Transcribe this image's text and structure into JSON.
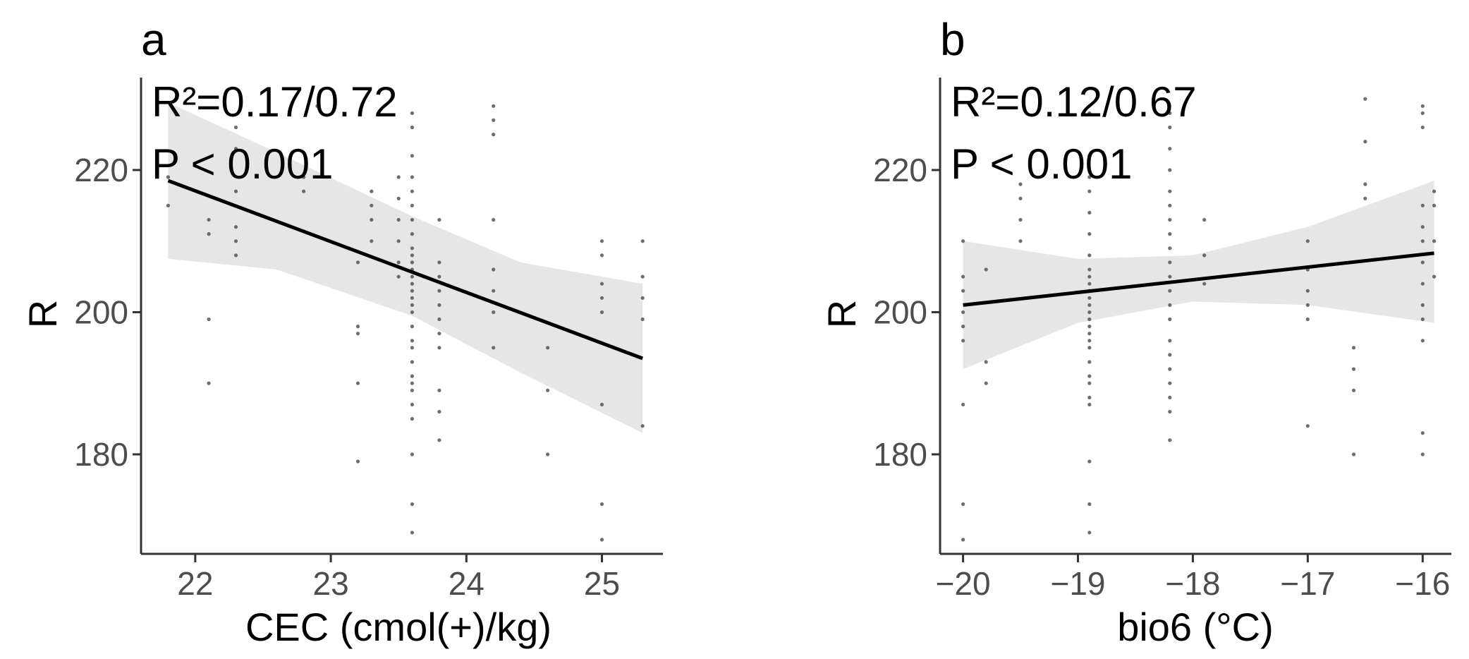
{
  "chart_data": [
    {
      "type": "scatter",
      "panel": "a",
      "xlabel": "CEC (cmol(+)/kg)",
      "ylabel": "R",
      "annotations": [
        "R²=0.17/0.72",
        "P < 0.001"
      ],
      "xlim": [
        21.6,
        25.45
      ],
      "ylim": [
        166,
        233
      ],
      "x_ticks": [
        22,
        23,
        24,
        25
      ],
      "x_tick_labels": [
        "22",
        "23",
        "24",
        "25"
      ],
      "y_ticks": [
        180,
        200,
        220
      ],
      "y_tick_labels": [
        "180",
        "200",
        "220"
      ],
      "grid": false,
      "fit": {
        "x": [
          21.8,
          25.3
        ],
        "y": [
          218.5,
          193.5
        ]
      },
      "ci": {
        "x": [
          21.8,
          22.6,
          23.6,
          24.4,
          25.3
        ],
        "upper": [
          229.5,
          222.5,
          213.5,
          207.0,
          204.0
        ],
        "lower": [
          207.5,
          206.0,
          199.5,
          191.5,
          183.0
        ]
      },
      "points": [
        [
          21.8,
          215
        ],
        [
          21.8,
          219
        ],
        [
          22.1,
          199
        ],
        [
          22.1,
          190
        ],
        [
          22.1,
          213
        ],
        [
          22.1,
          211
        ],
        [
          22.3,
          226
        ],
        [
          22.3,
          223
        ],
        [
          22.3,
          217
        ],
        [
          22.3,
          212
        ],
        [
          22.3,
          210
        ],
        [
          22.3,
          208
        ],
        [
          22.8,
          219
        ],
        [
          22.8,
          217
        ],
        [
          22.9,
          229
        ],
        [
          23.2,
          207
        ],
        [
          23.2,
          198
        ],
        [
          23.2,
          197
        ],
        [
          23.2,
          190
        ],
        [
          23.2,
          179
        ],
        [
          23.3,
          217
        ],
        [
          23.3,
          215
        ],
        [
          23.3,
          213
        ],
        [
          23.3,
          210
        ],
        [
          23.5,
          219
        ],
        [
          23.5,
          216
        ],
        [
          23.5,
          213
        ],
        [
          23.5,
          210
        ],
        [
          23.5,
          207
        ],
        [
          23.5,
          205
        ],
        [
          23.6,
          228
        ],
        [
          23.6,
          226
        ],
        [
          23.6,
          222
        ],
        [
          23.6,
          219
        ],
        [
          23.6,
          217
        ],
        [
          23.6,
          215
        ],
        [
          23.6,
          213
        ],
        [
          23.6,
          211
        ],
        [
          23.6,
          209
        ],
        [
          23.6,
          208
        ],
        [
          23.6,
          207
        ],
        [
          23.6,
          206
        ],
        [
          23.6,
          205
        ],
        [
          23.6,
          204
        ],
        [
          23.6,
          203
        ],
        [
          23.6,
          202
        ],
        [
          23.6,
          201
        ],
        [
          23.6,
          200
        ],
        [
          23.6,
          198
        ],
        [
          23.6,
          196
        ],
        [
          23.6,
          195
        ],
        [
          23.6,
          193
        ],
        [
          23.6,
          191
        ],
        [
          23.6,
          190
        ],
        [
          23.6,
          189
        ],
        [
          23.6,
          187
        ],
        [
          23.6,
          185
        ],
        [
          23.6,
          180
        ],
        [
          23.6,
          173
        ],
        [
          23.6,
          169
        ],
        [
          23.8,
          213
        ],
        [
          23.8,
          207
        ],
        [
          23.8,
          205
        ],
        [
          23.8,
          203
        ],
        [
          23.8,
          201
        ],
        [
          23.8,
          199
        ],
        [
          23.8,
          197
        ],
        [
          23.8,
          195
        ],
        [
          23.8,
          189
        ],
        [
          23.8,
          186
        ],
        [
          23.8,
          182
        ],
        [
          24.2,
          229
        ],
        [
          24.2,
          227
        ],
        [
          24.2,
          225
        ],
        [
          24.2,
          213
        ],
        [
          24.2,
          206
        ],
        [
          24.2,
          203
        ],
        [
          24.2,
          200
        ],
        [
          24.2,
          195
        ],
        [
          24.6,
          195
        ],
        [
          24.6,
          189
        ],
        [
          24.6,
          180
        ],
        [
          25.0,
          210
        ],
        [
          25.0,
          208
        ],
        [
          25.0,
          204
        ],
        [
          25.0,
          202
        ],
        [
          25.0,
          200
        ],
        [
          25.0,
          187
        ],
        [
          25.0,
          173
        ],
        [
          25.0,
          168
        ],
        [
          25.3,
          210
        ],
        [
          25.3,
          205
        ],
        [
          25.3,
          202
        ],
        [
          25.3,
          199
        ],
        [
          25.3,
          184
        ]
      ]
    },
    {
      "type": "scatter",
      "panel": "b",
      "xlabel": "bio6 (°C)",
      "ylabel": "R",
      "annotations": [
        "R²=0.12/0.67",
        "P < 0.001"
      ],
      "xlim": [
        -20.2,
        -15.75
      ],
      "ylim": [
        166,
        233
      ],
      "x_ticks": [
        -20,
        -19,
        -18,
        -17,
        -16
      ],
      "x_tick_labels": [
        "−20",
        "−19",
        "−18",
        "−17",
        "−16"
      ],
      "y_ticks": [
        180,
        200,
        220
      ],
      "y_tick_labels": [
        "180",
        "200",
        "220"
      ],
      "grid": false,
      "fit": {
        "x": [
          -20.0,
          -15.9
        ],
        "y": [
          201.0,
          208.3
        ]
      },
      "ci": {
        "x": [
          -20.0,
          -19.0,
          -18.0,
          -17.0,
          -15.9
        ],
        "upper": [
          210.0,
          207.5,
          208.0,
          212.0,
          218.5
        ],
        "lower": [
          192.0,
          198.5,
          201.5,
          201.0,
          198.5
        ]
      },
      "points": [
        [
          -20.0,
          210
        ],
        [
          -20.0,
          205
        ],
        [
          -20.0,
          203
        ],
        [
          -20.0,
          200
        ],
        [
          -20.0,
          198
        ],
        [
          -20.0,
          196
        ],
        [
          -20.0,
          187
        ],
        [
          -20.0,
          173
        ],
        [
          -20.0,
          168
        ],
        [
          -19.8,
          206
        ],
        [
          -19.8,
          193
        ],
        [
          -19.8,
          190
        ],
        [
          -19.5,
          218
        ],
        [
          -19.5,
          216
        ],
        [
          -19.5,
          213
        ],
        [
          -19.5,
          210
        ],
        [
          -18.9,
          228
        ],
        [
          -18.9,
          222
        ],
        [
          -18.9,
          219
        ],
        [
          -18.9,
          217
        ],
        [
          -18.9,
          214
        ],
        [
          -18.9,
          211
        ],
        [
          -18.9,
          208
        ],
        [
          -18.9,
          206
        ],
        [
          -18.9,
          205
        ],
        [
          -18.9,
          204
        ],
        [
          -18.9,
          203
        ],
        [
          -18.9,
          202
        ],
        [
          -18.9,
          201
        ],
        [
          -18.9,
          200
        ],
        [
          -18.9,
          199
        ],
        [
          -18.9,
          198
        ],
        [
          -18.9,
          197
        ],
        [
          -18.9,
          196
        ],
        [
          -18.9,
          195
        ],
        [
          -18.9,
          193
        ],
        [
          -18.9,
          191
        ],
        [
          -18.9,
          190
        ],
        [
          -18.9,
          188
        ],
        [
          -18.9,
          187
        ],
        [
          -18.9,
          179
        ],
        [
          -18.9,
          173
        ],
        [
          -18.9,
          169
        ],
        [
          -18.2,
          228
        ],
        [
          -18.2,
          226
        ],
        [
          -18.2,
          223
        ],
        [
          -18.2,
          220
        ],
        [
          -18.2,
          217
        ],
        [
          -18.2,
          215
        ],
        [
          -18.2,
          213
        ],
        [
          -18.2,
          211
        ],
        [
          -18.2,
          209
        ],
        [
          -18.2,
          207
        ],
        [
          -18.2,
          205
        ],
        [
          -18.2,
          203
        ],
        [
          -18.2,
          201
        ],
        [
          -18.2,
          199
        ],
        [
          -18.2,
          196
        ],
        [
          -18.2,
          194
        ],
        [
          -18.2,
          192
        ],
        [
          -18.2,
          190
        ],
        [
          -18.2,
          188
        ],
        [
          -18.2,
          186
        ],
        [
          -18.2,
          182
        ],
        [
          -17.9,
          213
        ],
        [
          -17.9,
          208
        ],
        [
          -17.9,
          204
        ],
        [
          -17.0,
          210
        ],
        [
          -17.0,
          206
        ],
        [
          -17.0,
          203
        ],
        [
          -17.0,
          201
        ],
        [
          -17.0,
          199
        ],
        [
          -17.0,
          184
        ],
        [
          -16.6,
          195
        ],
        [
          -16.6,
          192
        ],
        [
          -16.6,
          189
        ],
        [
          -16.6,
          180
        ],
        [
          -16.5,
          230
        ],
        [
          -16.5,
          224
        ],
        [
          -16.5,
          218
        ],
        [
          -16.5,
          216
        ],
        [
          -16.0,
          229
        ],
        [
          -16.0,
          228
        ],
        [
          -16.0,
          226
        ],
        [
          -16.0,
          215
        ],
        [
          -16.0,
          212
        ],
        [
          -16.0,
          210
        ],
        [
          -16.0,
          207
        ],
        [
          -16.0,
          204
        ],
        [
          -16.0,
          201
        ],
        [
          -16.0,
          199
        ],
        [
          -16.0,
          196
        ],
        [
          -16.0,
          183
        ],
        [
          -16.0,
          180
        ],
        [
          -15.9,
          217
        ],
        [
          -15.9,
          215
        ],
        [
          -15.9,
          210
        ],
        [
          -15.9,
          205
        ]
      ]
    }
  ]
}
